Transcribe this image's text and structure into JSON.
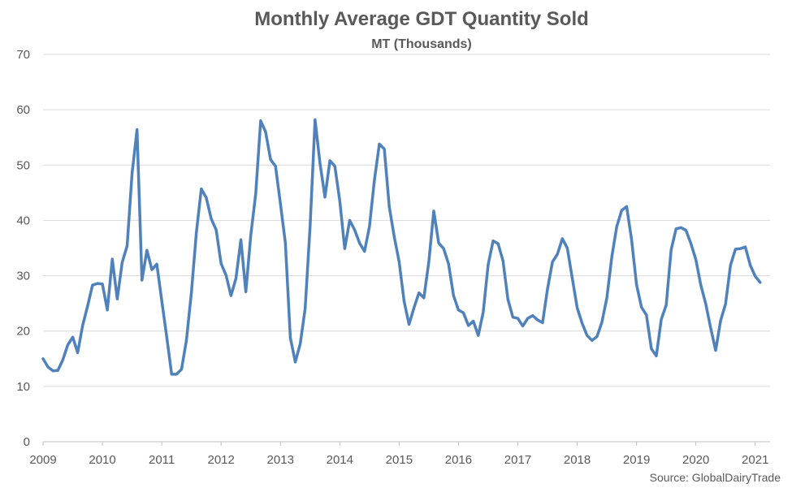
{
  "chart_data": {
    "type": "line",
    "title": "Monthly Average GDT Quantity Sold",
    "subtitle": "MT (Thousands)",
    "source": "Source: GlobalDairyTrade",
    "xlabel": "",
    "ylabel": "",
    "ylim": [
      0,
      70
    ],
    "yticks": [
      "0",
      "10",
      "20",
      "30",
      "40",
      "50",
      "60",
      "70"
    ],
    "xlim": [
      "2009-01",
      "2021-04"
    ],
    "xticks": [
      "2009",
      "2010",
      "2011",
      "2012",
      "2013",
      "2014",
      "2015",
      "2016",
      "2017",
      "2018",
      "2019",
      "2020",
      "2021"
    ],
    "grid": "horizontal",
    "legend": "none",
    "line_color": "#4f81bd",
    "series": [
      {
        "x": [
          "2009-01",
          "2009-02",
          "2009-03",
          "2009-04",
          "2009-05",
          "2009-06",
          "2009-07",
          "2009-08",
          "2009-09",
          "2009-10",
          "2009-11",
          "2009-12",
          "2010-01",
          "2010-02",
          "2010-03",
          "2010-04",
          "2010-05",
          "2010-06",
          "2010-07",
          "2010-08",
          "2010-09",
          "2010-10",
          "2010-11",
          "2010-12",
          "2011-01",
          "2011-02",
          "2011-03",
          "2011-04",
          "2011-05",
          "2011-06",
          "2011-07",
          "2011-08",
          "2011-09",
          "2011-10",
          "2011-11",
          "2011-12",
          "2012-01",
          "2012-02",
          "2012-03",
          "2012-04",
          "2012-05",
          "2012-06",
          "2012-07",
          "2012-08",
          "2012-09",
          "2012-10",
          "2012-11",
          "2012-12",
          "2013-01",
          "2013-02",
          "2013-03",
          "2013-04",
          "2013-05",
          "2013-06",
          "2013-07",
          "2013-08",
          "2013-09",
          "2013-10",
          "2013-11",
          "2013-12",
          "2014-01",
          "2014-02",
          "2014-03",
          "2014-04",
          "2014-05",
          "2014-06",
          "2014-07",
          "2014-08",
          "2014-09",
          "2014-10",
          "2014-11",
          "2014-12",
          "2015-01",
          "2015-02",
          "2015-03",
          "2015-04",
          "2015-05",
          "2015-06",
          "2015-07",
          "2015-08",
          "2015-09",
          "2015-10",
          "2015-11",
          "2015-12",
          "2016-01",
          "2016-02",
          "2016-03",
          "2016-04",
          "2016-05",
          "2016-06",
          "2016-07",
          "2016-08",
          "2016-09",
          "2016-10",
          "2016-11",
          "2016-12",
          "2017-01",
          "2017-02",
          "2017-03",
          "2017-04",
          "2017-05",
          "2017-06",
          "2017-07",
          "2017-08",
          "2017-09",
          "2017-10",
          "2017-11",
          "2017-12",
          "2018-01",
          "2018-02",
          "2018-03",
          "2018-04",
          "2018-05",
          "2018-06",
          "2018-07",
          "2018-08",
          "2018-09",
          "2018-10",
          "2018-11",
          "2018-12",
          "2019-01",
          "2019-02",
          "2019-03",
          "2019-04",
          "2019-05",
          "2019-06",
          "2019-07",
          "2019-08",
          "2019-09",
          "2019-10",
          "2019-11",
          "2019-12",
          "2020-01",
          "2020-02",
          "2020-03",
          "2020-04",
          "2020-05",
          "2020-06",
          "2020-07",
          "2020-08",
          "2020-09",
          "2020-10",
          "2020-11",
          "2020-12",
          "2021-01",
          "2021-02"
        ],
        "values": [
          15.0,
          13.5,
          12.8,
          12.9,
          14.8,
          17.5,
          18.9,
          16.1,
          21.0,
          24.5,
          28.3,
          28.6,
          28.5,
          23.8,
          33.0,
          25.8,
          32.4,
          35.4,
          48.5,
          56.4,
          29.2,
          34.6,
          31.1,
          32.1,
          25.5,
          19.0,
          12.2,
          12.2,
          13.1,
          18.4,
          27.0,
          37.8,
          45.7,
          44.1,
          40.3,
          38.3,
          32.2,
          30.1,
          26.4,
          29.5,
          36.5,
          27.1,
          37.3,
          44.8,
          58.0,
          56.0,
          51.0,
          49.8,
          43.0,
          35.9,
          18.8,
          14.4,
          17.7,
          24.1,
          39.0,
          58.2,
          50.3,
          44.2,
          50.8,
          49.8,
          43.5,
          34.9,
          40.0,
          38.3,
          35.9,
          34.4,
          38.9,
          47.3,
          53.8,
          52.9,
          42.5,
          37.1,
          32.5,
          25.4,
          21.2,
          24.2,
          26.9,
          26.0,
          32.5,
          41.7,
          35.9,
          34.9,
          32.1,
          26.4,
          23.8,
          23.3,
          21.0,
          21.8,
          19.2,
          23.4,
          32.0,
          36.3,
          35.8,
          32.7,
          25.7,
          22.5,
          22.3,
          20.9,
          22.3,
          22.8,
          22.0,
          21.5,
          27.6,
          32.5,
          33.9,
          36.7,
          35.0,
          29.6,
          24.2,
          21.4,
          19.2,
          18.3,
          19.0,
          21.6,
          26.0,
          33.4,
          38.9,
          41.8,
          42.5,
          36.5,
          28.4,
          24.3,
          22.9,
          16.8,
          15.5,
          22.1,
          24.7,
          34.7,
          38.5,
          38.7,
          38.2,
          35.8,
          32.9,
          28.3,
          24.9,
          20.5,
          16.5,
          21.9,
          24.9,
          31.9,
          34.8,
          34.9,
          35.2,
          31.9,
          29.9,
          28.8
        ]
      }
    ]
  }
}
